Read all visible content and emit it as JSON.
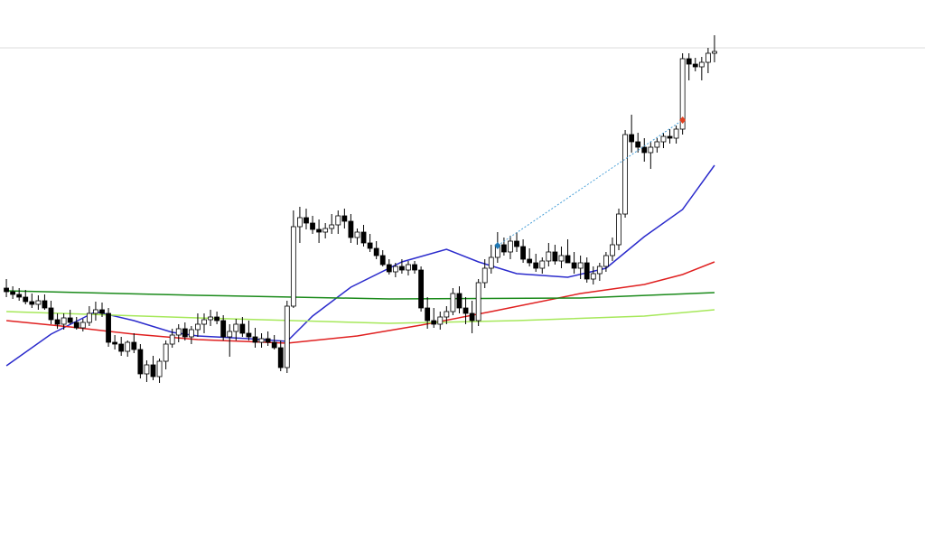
{
  "chart_data": {
    "type": "candlestick",
    "xlim": [
      -1,
      144
    ],
    "ylim": [
      0,
      609
    ],
    "up_color": "#ffffff",
    "down_color": "#000000",
    "wick_color": "#000000",
    "ohlc": [
      [
        290,
        300,
        280,
        286
      ],
      [
        286,
        292,
        278,
        283
      ],
      [
        283,
        290,
        276,
        280
      ],
      [
        280,
        288,
        272,
        275
      ],
      [
        275,
        284,
        268,
        272
      ],
      [
        272,
        282,
        266,
        276
      ],
      [
        276,
        283,
        266,
        268
      ],
      [
        268,
        276,
        250,
        255
      ],
      [
        255,
        262,
        245,
        250
      ],
      [
        250,
        262,
        244,
        257
      ],
      [
        257,
        266,
        250,
        252
      ],
      [
        252,
        258,
        244,
        246
      ],
      [
        246,
        256,
        242,
        252
      ],
      [
        252,
        270,
        248,
        262
      ],
      [
        262,
        275,
        254,
        266
      ],
      [
        266,
        274,
        258,
        262
      ],
      [
        262,
        268,
        225,
        230
      ],
      [
        230,
        238,
        222,
        228
      ],
      [
        228,
        236,
        215,
        220
      ],
      [
        220,
        232,
        214,
        230
      ],
      [
        230,
        240,
        218,
        222
      ],
      [
        222,
        228,
        190,
        195
      ],
      [
        195,
        210,
        186,
        205
      ],
      [
        205,
        215,
        188,
        192
      ],
      [
        192,
        212,
        185,
        209
      ],
      [
        209,
        232,
        200,
        228
      ],
      [
        228,
        245,
        224,
        238
      ],
      [
        238,
        250,
        230,
        245
      ],
      [
        245,
        252,
        232,
        236
      ],
      [
        236,
        248,
        228,
        244
      ],
      [
        244,
        262,
        236,
        250
      ],
      [
        250,
        262,
        240,
        255
      ],
      [
        255,
        266,
        248,
        258
      ],
      [
        258,
        264,
        250,
        254
      ],
      [
        254,
        260,
        232,
        236
      ],
      [
        236,
        250,
        214,
        242
      ],
      [
        242,
        256,
        232,
        250
      ],
      [
        250,
        258,
        236,
        240
      ],
      [
        240,
        254,
        232,
        236
      ],
      [
        236,
        246,
        224,
        230
      ],
      [
        230,
        240,
        224,
        234
      ],
      [
        234,
        242,
        226,
        230
      ],
      [
        230,
        238,
        222,
        224
      ],
      [
        224,
        232,
        198,
        202
      ],
      [
        202,
        276,
        196,
        270
      ],
      [
        270,
        376,
        268,
        358
      ],
      [
        358,
        380,
        340,
        368
      ],
      [
        368,
        378,
        355,
        362
      ],
      [
        362,
        370,
        350,
        355
      ],
      [
        355,
        366,
        340,
        352
      ],
      [
        352,
        362,
        345,
        356
      ],
      [
        356,
        372,
        350,
        360
      ],
      [
        360,
        376,
        350,
        370
      ],
      [
        370,
        378,
        356,
        364
      ],
      [
        364,
        372,
        340,
        346
      ],
      [
        346,
        356,
        338,
        352
      ],
      [
        352,
        360,
        336,
        340
      ],
      [
        340,
        350,
        330,
        334
      ],
      [
        334,
        342,
        322,
        326
      ],
      [
        326,
        332,
        314,
        316
      ],
      [
        316,
        322,
        305,
        308
      ],
      [
        308,
        318,
        302,
        314
      ],
      [
        314,
        322,
        306,
        310
      ],
      [
        310,
        320,
        304,
        316
      ],
      [
        316,
        320,
        306,
        310
      ],
      [
        310,
        314,
        264,
        268
      ],
      [
        268,
        280,
        245,
        254
      ],
      [
        254,
        268,
        246,
        250
      ],
      [
        250,
        264,
        244,
        258
      ],
      [
        258,
        270,
        250,
        264
      ],
      [
        264,
        290,
        260,
        284
      ],
      [
        284,
        292,
        262,
        268
      ],
      [
        268,
        280,
        250,
        262
      ],
      [
        262,
        276,
        240,
        254
      ],
      [
        254,
        300,
        248,
        296
      ],
      [
        296,
        322,
        290,
        312
      ],
      [
        312,
        338,
        306,
        324
      ],
      [
        324,
        352,
        318,
        338
      ],
      [
        338,
        346,
        326,
        330
      ],
      [
        330,
        348,
        322,
        342
      ],
      [
        342,
        352,
        330,
        336
      ],
      [
        336,
        344,
        318,
        322
      ],
      [
        322,
        334,
        314,
        318
      ],
      [
        318,
        328,
        308,
        312
      ],
      [
        312,
        324,
        306,
        320
      ],
      [
        320,
        340,
        314,
        330
      ],
      [
        330,
        338,
        316,
        320
      ],
      [
        320,
        336,
        312,
        326
      ],
      [
        326,
        344,
        318,
        318
      ],
      [
        318,
        330,
        306,
        312
      ],
      [
        312,
        326,
        300,
        318
      ],
      [
        318,
        324,
        296,
        300
      ],
      [
        300,
        314,
        294,
        306
      ],
      [
        306,
        318,
        298,
        314
      ],
      [
        314,
        330,
        308,
        326
      ],
      [
        326,
        346,
        320,
        338
      ],
      [
        338,
        378,
        332,
        372
      ],
      [
        372,
        465,
        368,
        460
      ],
      [
        460,
        482,
        440,
        452
      ],
      [
        452,
        462,
        440,
        446
      ],
      [
        446,
        456,
        430,
        440
      ],
      [
        440,
        452,
        422,
        446
      ],
      [
        446,
        456,
        440,
        452
      ],
      [
        452,
        462,
        445,
        458
      ],
      [
        458,
        466,
        450,
        456
      ],
      [
        456,
        470,
        450,
        466
      ],
      [
        466,
        550,
        460,
        544
      ],
      [
        544,
        550,
        520,
        538
      ],
      [
        538,
        545,
        530,
        535
      ],
      [
        535,
        546,
        520,
        540
      ],
      [
        540,
        556,
        528,
        550
      ],
      [
        550,
        570,
        540,
        552
      ]
    ],
    "series": [
      {
        "color": "#2b2bcc",
        "x": [
          0,
          7,
          14,
          20,
          26,
          30,
          38,
          44,
          48,
          54,
          62,
          69,
          74,
          80,
          88,
          94,
          100,
          106,
          111
        ],
        "values": [
          204,
          239,
          264,
          254,
          241,
          237,
          234,
          231,
          259,
          291,
          319,
          333,
          319,
          306,
          302,
          312,
          347,
          377,
          426
        ]
      },
      {
        "color": "#e02020",
        "x": [
          0,
          10,
          20,
          30,
          44,
          55,
          65,
          76,
          90,
          100,
          106,
          111
        ],
        "values": [
          254,
          247,
          239,
          233,
          229,
          237,
          249,
          264,
          284,
          294,
          305,
          319
        ]
      },
      {
        "color": "#1a8a1a",
        "x": [
          0,
          30,
          60,
          90,
          111
        ],
        "values": [
          287,
          282,
          278,
          279,
          285
        ]
      },
      {
        "color": "#a6e85a",
        "x": [
          0,
          30,
          60,
          80,
          100,
          111
        ],
        "values": [
          264,
          257,
          251,
          254,
          259,
          266
        ]
      }
    ],
    "signal_line": {
      "x": [
        77,
        106
      ],
      "values": [
        337,
        476
      ],
      "color": "#4aa0d8",
      "marker_colors": [
        "#1f78b4",
        "#e04020"
      ]
    },
    "hline": {
      "value": 556,
      "color": "#dddddd"
    }
  }
}
